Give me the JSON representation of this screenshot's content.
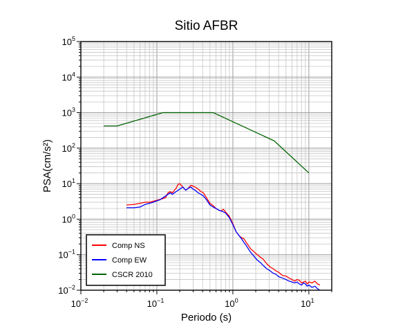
{
  "chart_data": {
    "type": "line",
    "title": "Sitio AFBR",
    "xlabel": "Periodo (s)",
    "ylabel": "PSA(cm/s²)",
    "x_scale": "log",
    "y_scale": "log",
    "xlim": [
      0.01,
      20
    ],
    "ylim": [
      0.01,
      100000
    ],
    "grid": true,
    "legend_position": "bottom-left",
    "x_ticks": [
      {
        "value": 0.01,
        "base": "10",
        "exp": "−2"
      },
      {
        "value": 0.1,
        "base": "10",
        "exp": "−1"
      },
      {
        "value": 1,
        "base": "10",
        "exp": "0"
      },
      {
        "value": 10,
        "base": "10",
        "exp": "1"
      }
    ],
    "y_ticks": [
      {
        "value": 0.01,
        "base": "10",
        "exp": "−2"
      },
      {
        "value": 0.1,
        "base": "10",
        "exp": "−1"
      },
      {
        "value": 1,
        "base": "10",
        "exp": "0"
      },
      {
        "value": 10,
        "base": "10",
        "exp": "1"
      },
      {
        "value": 100,
        "base": "10",
        "exp": "2"
      },
      {
        "value": 1000,
        "base": "10",
        "exp": "3"
      },
      {
        "value": 10000,
        "base": "10",
        "exp": "4"
      },
      {
        "value": 100000,
        "base": "10",
        "exp": "5"
      }
    ],
    "series": [
      {
        "name": "Comp NS",
        "color": "#ff0000",
        "x": [
          0.04,
          0.05,
          0.06,
          0.07,
          0.08,
          0.09,
          0.1,
          0.11,
          0.12,
          0.13,
          0.14,
          0.15,
          0.16,
          0.17,
          0.18,
          0.19,
          0.2,
          0.22,
          0.24,
          0.26,
          0.28,
          0.3,
          0.32,
          0.35,
          0.38,
          0.41,
          0.45,
          0.5,
          0.55,
          0.6,
          0.65,
          0.7,
          0.75,
          0.8,
          0.9,
          1.0,
          1.1,
          1.2,
          1.3,
          1.4,
          1.5,
          1.7,
          1.9,
          2.1,
          2.3,
          2.5,
          2.8,
          3.1,
          3.4,
          3.7,
          4.0,
          4.5,
          5.0,
          5.5,
          6.0,
          6.5,
          7.0,
          7.5,
          8.0,
          8.5,
          9.0,
          9.5,
          10,
          11,
          12,
          13,
          14
        ],
        "y": [
          2.5,
          2.6,
          2.8,
          3.0,
          3.0,
          3.2,
          3.4,
          3.6,
          3.8,
          4.0,
          5.5,
          6.0,
          5.5,
          6.5,
          7.5,
          9.5,
          10,
          8.0,
          6.5,
          7.5,
          9.0,
          8.5,
          8.0,
          7.0,
          6.0,
          5.5,
          4.0,
          2.8,
          2.4,
          2.0,
          1.8,
          1.7,
          1.9,
          1.6,
          1.2,
          0.75,
          0.45,
          0.35,
          0.3,
          0.28,
          0.22,
          0.15,
          0.12,
          0.1,
          0.085,
          0.075,
          0.055,
          0.045,
          0.04,
          0.035,
          0.032,
          0.026,
          0.025,
          0.022,
          0.02,
          0.018,
          0.02,
          0.019,
          0.016,
          0.017,
          0.018,
          0.015,
          0.017,
          0.016,
          0.018,
          0.015,
          0.014
        ]
      },
      {
        "name": "Comp EW",
        "color": "#0000ff",
        "x": [
          0.04,
          0.05,
          0.06,
          0.07,
          0.08,
          0.09,
          0.1,
          0.11,
          0.12,
          0.13,
          0.14,
          0.15,
          0.16,
          0.17,
          0.18,
          0.19,
          0.2,
          0.22,
          0.24,
          0.26,
          0.28,
          0.3,
          0.32,
          0.35,
          0.38,
          0.41,
          0.45,
          0.5,
          0.55,
          0.6,
          0.65,
          0.7,
          0.75,
          0.8,
          0.9,
          1.0,
          1.1,
          1.2,
          1.3,
          1.4,
          1.5,
          1.7,
          1.9,
          2.1,
          2.3,
          2.5,
          2.8,
          3.1,
          3.4,
          3.7,
          4.0,
          4.5,
          5.0,
          5.5,
          6.0,
          6.5,
          7.0,
          7.5,
          8.0,
          8.5,
          9.0,
          9.5,
          10,
          11,
          12,
          13,
          14
        ],
        "y": [
          2.1,
          2.1,
          2.2,
          2.6,
          2.8,
          3.0,
          3.3,
          3.5,
          4.0,
          4.5,
          5.0,
          5.5,
          5.0,
          5.5,
          6.0,
          6.5,
          7.0,
          8.0,
          6.5,
          7.5,
          8.0,
          7.0,
          6.5,
          5.5,
          5.0,
          4.5,
          3.5,
          2.5,
          2.2,
          2.0,
          1.8,
          1.7,
          1.6,
          1.5,
          1.1,
          0.7,
          0.45,
          0.35,
          0.28,
          0.22,
          0.18,
          0.12,
          0.09,
          0.07,
          0.06,
          0.05,
          0.04,
          0.035,
          0.03,
          0.028,
          0.024,
          0.022,
          0.02,
          0.018,
          0.017,
          0.016,
          0.017,
          0.015,
          0.014,
          0.016,
          0.015,
          0.013,
          0.014,
          0.012,
          0.013,
          0.011,
          0.01
        ]
      },
      {
        "name": "CSCR 2010",
        "color": "#006400",
        "x": [
          0.02,
          0.03,
          0.12,
          0.55,
          3.5,
          10
        ],
        "y": [
          420,
          420,
          1000,
          1000,
          160,
          20
        ]
      }
    ]
  }
}
